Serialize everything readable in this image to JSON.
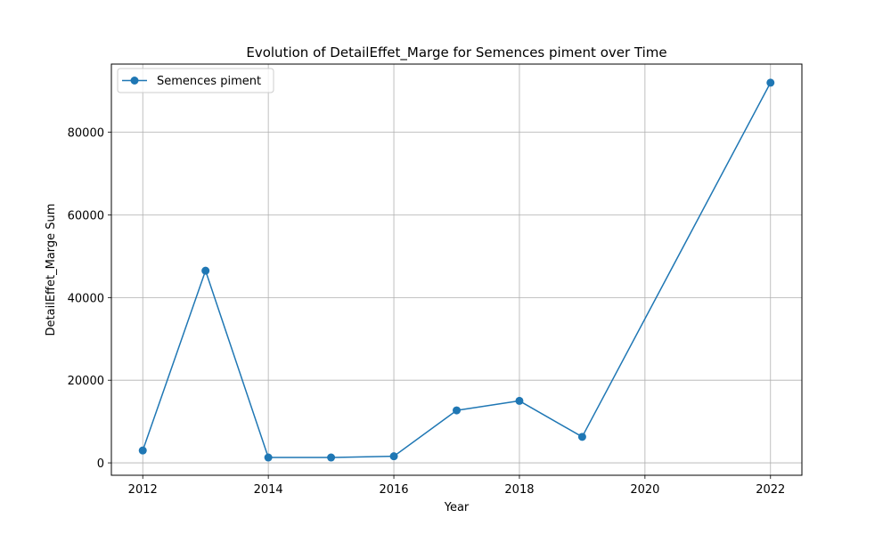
{
  "chart_data": {
    "type": "line",
    "title": "Evolution of DetailEffet_Marge for Semences piment over Time",
    "xlabel": "Year",
    "ylabel": "DetailEffet_Marge Sum",
    "xlim": [
      2011.5,
      2022.5
    ],
    "ylim": [
      -3000,
      96500
    ],
    "xticks": [
      2012,
      2014,
      2016,
      2018,
      2020,
      2022
    ],
    "yticks": [
      0,
      20000,
      40000,
      60000,
      80000
    ],
    "grid": true,
    "legend_position": "upper-left",
    "series": [
      {
        "name": "Semences piment",
        "color": "#1f77b4",
        "marker": "circle",
        "x": [
          2012,
          2013,
          2014,
          2015,
          2016,
          2017,
          2018,
          2019,
          2022
        ],
        "y": [
          3000,
          46500,
          1300,
          1300,
          1600,
          12700,
          15000,
          6300,
          92000
        ]
      }
    ]
  }
}
